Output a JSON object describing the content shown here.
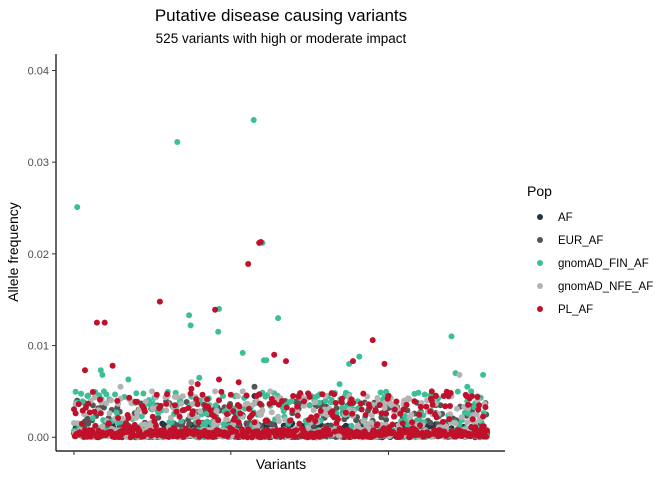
{
  "chart_data": {
    "type": "scatter",
    "title": "Putative disease causing variants",
    "subtitle": "525 variants with high or moderate impact",
    "xlabel": "Variants",
    "ylabel": "Allele frequency",
    "x_count": 525,
    "ylim": [
      -0.0015,
      0.0418
    ],
    "y_ticks": [
      0,
      0.01,
      0.02,
      0.03,
      0.04
    ],
    "y_tick_labels": [
      "0.00",
      "0.01",
      "0.02",
      "0.03",
      "0.04"
    ],
    "x_ticks": [
      1,
      200,
      400
    ],
    "grid": false,
    "legend": {
      "title": "Pop",
      "position": "right",
      "entries": [
        "AF",
        "EUR_AF",
        "gnomAD_FIN_AF",
        "gnomAD_NFE_AF",
        "PL_AF"
      ]
    },
    "series": [
      {
        "name": "AF",
        "color": "#25343f",
        "background_level": 0.0015,
        "points": [
          [
            230,
            0.0045
          ],
          [
            300,
            0.0035
          ]
        ]
      },
      {
        "name": "EUR_AF",
        "color": "#555555",
        "background_level": 0.004,
        "points": [
          [
            5,
            0.004
          ],
          [
            160,
            0.004
          ],
          [
            230,
            0.0055
          ],
          [
            290,
            0.004
          ],
          [
            300,
            0.0035
          ],
          [
            325,
            0.003
          ],
          [
            400,
            0.004
          ],
          [
            460,
            0.0035
          ]
        ]
      },
      {
        "name": "gnomAD_FIN_AF",
        "color": "#3cbf98",
        "background_level": 0.005,
        "points": [
          [
            5,
            0.0251
          ],
          [
            18,
            0.0045
          ],
          [
            35,
            0.0073
          ],
          [
            37,
            0.0068
          ],
          [
            70,
            0.0063
          ],
          [
            80,
            0.0048
          ],
          [
            131,
            0.0033
          ],
          [
            132,
            0.0322
          ],
          [
            147,
            0.0133
          ],
          [
            149,
            0.0122
          ],
          [
            160,
            0.0065
          ],
          [
            185,
            0.014
          ],
          [
            184,
            0.0115
          ],
          [
            190,
            0.0045
          ],
          [
            215,
            0.0092
          ],
          [
            229,
            0.0346
          ],
          [
            240,
            0.0212
          ],
          [
            242,
            0.0084
          ],
          [
            245,
            0.0084
          ],
          [
            260,
            0.013
          ],
          [
            285,
            0.0045
          ],
          [
            300,
            0.0035
          ],
          [
            310,
            0.0045
          ],
          [
            338,
            0.0058
          ],
          [
            345,
            0.0045
          ],
          [
            350,
            0.008
          ],
          [
            363,
            0.0088
          ],
          [
            480,
            0.011
          ],
          [
            485,
            0.007
          ],
          [
            500,
            0.0055
          ],
          [
            505,
            0.005
          ],
          [
            520,
            0.0068
          ]
        ]
      },
      {
        "name": "gnomAD_NFE_AF",
        "color": "#b3b3b3",
        "background_level": 0.0045,
        "points": [
          [
            60,
            0.0055
          ],
          [
            100,
            0.005
          ],
          [
            120,
            0.0045
          ],
          [
            150,
            0.006
          ],
          [
            180,
            0.005
          ],
          [
            215,
            0.005
          ],
          [
            250,
            0.005
          ],
          [
            290,
            0.0045
          ],
          [
            320,
            0.0045
          ],
          [
            350,
            0.0045
          ],
          [
            420,
            0.004
          ],
          [
            470,
            0.0045
          ],
          [
            490,
            0.0068
          ],
          [
            505,
            0.0045
          ]
        ]
      },
      {
        "name": "PL_AF",
        "color": "#c0102a",
        "background_level": 0.005,
        "points": [
          [
            15,
            0.0073
          ],
          [
            30,
            0.0125
          ],
          [
            40,
            0.0125
          ],
          [
            50,
            0.0078
          ],
          [
            110,
            0.0148
          ],
          [
            150,
            0.0053
          ],
          [
            158,
            0.0058
          ],
          [
            180,
            0.0139
          ],
          [
            185,
            0.0063
          ],
          [
            210,
            0.006
          ],
          [
            222,
            0.0189
          ],
          [
            238,
            0.0213
          ],
          [
            236,
            0.0212
          ],
          [
            255,
            0.009
          ],
          [
            270,
            0.0083
          ],
          [
            300,
            0.0044
          ],
          [
            355,
            0.0083
          ],
          [
            380,
            0.0106
          ],
          [
            395,
            0.008
          ],
          [
            400,
            0.0045
          ],
          [
            455,
            0.005
          ],
          [
            460,
            0.0045
          ],
          [
            470,
            0.0045
          ],
          [
            515,
            0.0035
          ]
        ]
      }
    ]
  }
}
